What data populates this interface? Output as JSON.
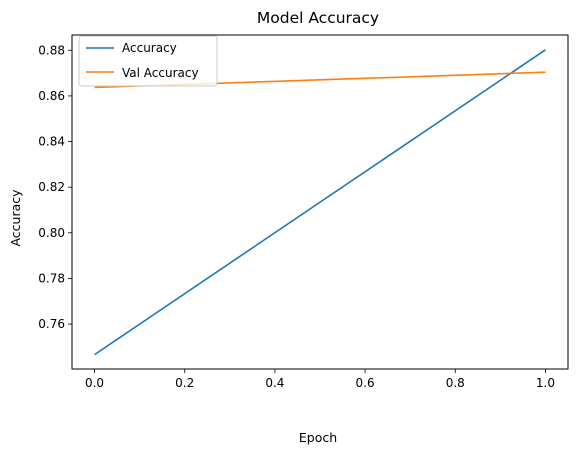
{
  "chart_data": {
    "type": "line",
    "title": "Model Accuracy",
    "xlabel": "Epoch",
    "ylabel": "Accuracy",
    "xlim": [
      -0.05,
      1.05
    ],
    "ylim": [
      0.7403,
      0.8867
    ],
    "xticks": [
      0.0,
      0.2,
      0.4,
      0.6,
      0.8,
      1.0
    ],
    "xtick_labels": [
      "0.0",
      "0.2",
      "0.4",
      "0.6",
      "0.8",
      "1.0"
    ],
    "yticks": [
      0.76,
      0.78,
      0.8,
      0.82,
      0.84,
      0.86,
      0.88
    ],
    "ytick_labels": [
      "0.76",
      "0.78",
      "0.80",
      "0.82",
      "0.84",
      "0.86",
      "0.88"
    ],
    "grid": false,
    "legend_position": "top-left",
    "x": [
      0,
      1
    ],
    "series": [
      {
        "name": "Accuracy",
        "values": [
          0.7466,
          0.8802
        ],
        "color": "#1f77b4"
      },
      {
        "name": "Val Accuracy",
        "values": [
          0.8637,
          0.8704
        ],
        "color": "#ff7f0e"
      }
    ]
  }
}
